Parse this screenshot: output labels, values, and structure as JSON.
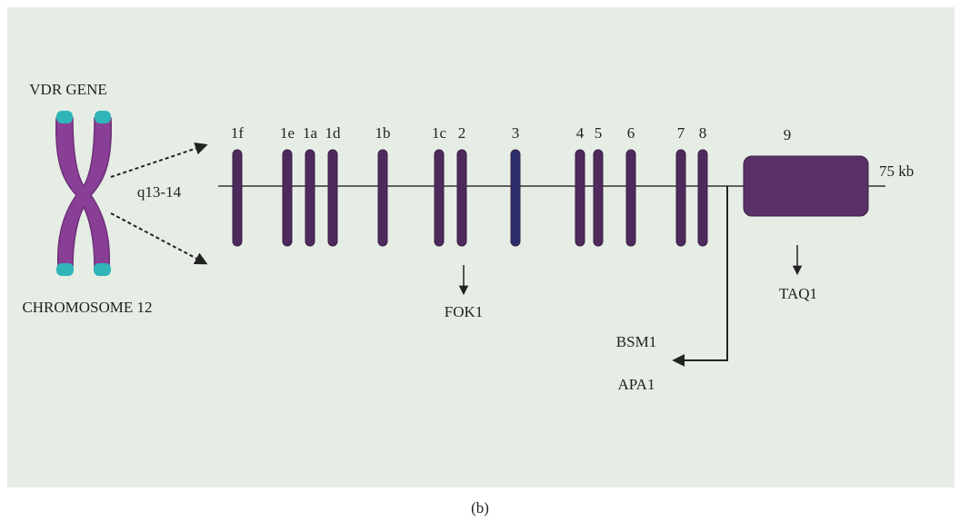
{
  "figure": {
    "chromosome": {
      "gene": "VDR GENE",
      "name": "CHROMOSOME 12",
      "locus": "q13-14"
    },
    "exons": [
      "1f",
      "1e",
      "1a",
      "1d",
      "1b",
      "1c",
      "2",
      "3",
      "4",
      "5",
      "6",
      "7",
      "8",
      "9"
    ],
    "length_label": "75 kb",
    "sites": {
      "fok1": "FOK1",
      "taq1": "TAQ1",
      "bsm1": "BSM1",
      "apa1": "APA1"
    },
    "caption": "(b)"
  }
}
